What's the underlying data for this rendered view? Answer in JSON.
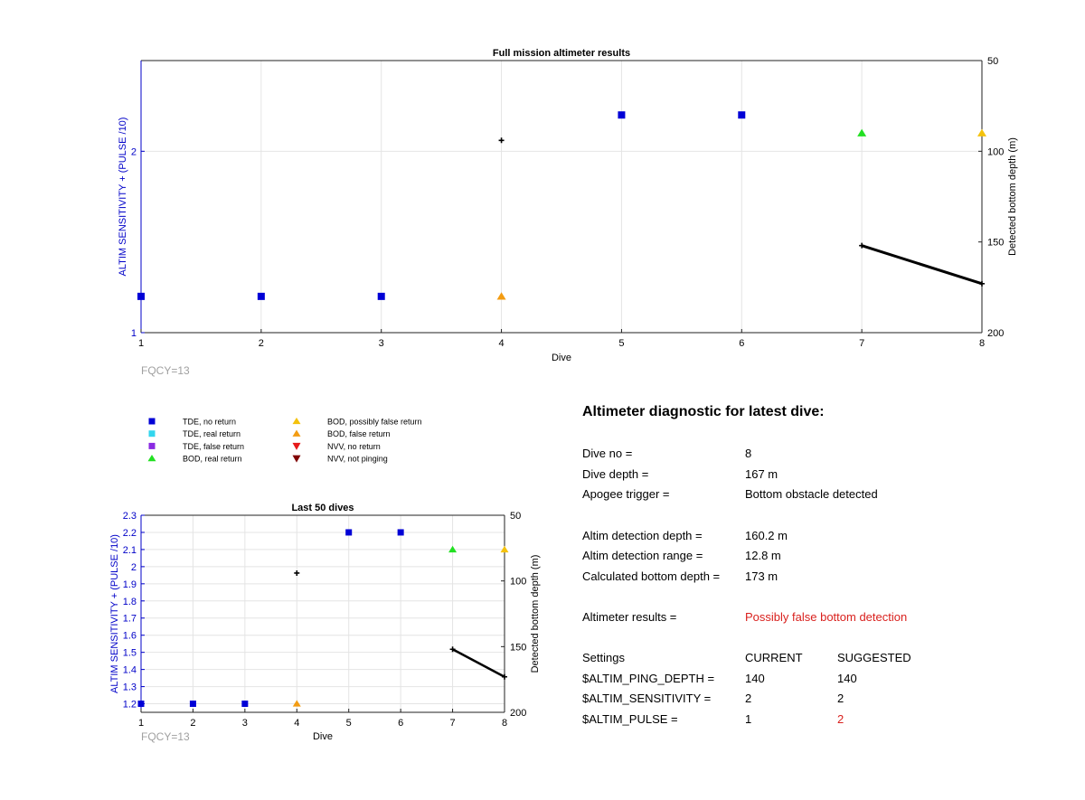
{
  "fqcy_label": "FQCY=13",
  "colors": {
    "tde_no_return": "#0000d6",
    "tde_real_return": "#33d6ee",
    "tde_false_return": "#8a2be2",
    "bod_real_return": "#22e022",
    "bod_possibly_false_return": "#f4c20d",
    "bod_false_return": "#f39c12",
    "nvv_no_return": "#e61a1a",
    "nvv_not_pinging": "#800000",
    "left_axis": "#0000c8",
    "bottom_depth": "#000000",
    "warning_text": "#d9211e",
    "grid": "#e4e4e4"
  },
  "legend": [
    {
      "label": "TDE, no return",
      "marker": "square",
      "color_key": "tde_no_return"
    },
    {
      "label": "TDE, real return",
      "marker": "square",
      "color_key": "tde_real_return"
    },
    {
      "label": "TDE, false return",
      "marker": "square",
      "color_key": "tde_false_return"
    },
    {
      "label": "BOD, real return",
      "marker": "triangle-up",
      "color_key": "bod_real_return"
    },
    {
      "label": "BOD, possibly false return",
      "marker": "triangle-up",
      "color_key": "bod_possibly_false_return"
    },
    {
      "label": "BOD, false return",
      "marker": "triangle-up",
      "color_key": "bod_false_return"
    },
    {
      "label": "NVV, no return",
      "marker": "triangle-down",
      "color_key": "nvv_no_return"
    },
    {
      "label": "NVV, not pinging",
      "marker": "triangle-down",
      "color_key": "nvv_not_pinging"
    }
  ],
  "chart_data": [
    {
      "type": "scatter",
      "title": "Full mission altimeter results",
      "xlabel": "Dive",
      "ylabel": "ALTIM SENSITIVITY + (PULSE /10)",
      "y2label": "Detected bottom depth (m)",
      "xlim": [
        1,
        8
      ],
      "ylim": [
        1,
        2.5
      ],
      "y2lim": [
        200,
        50
      ],
      "y2_reversed": true,
      "xticks": [
        1,
        2,
        3,
        4,
        5,
        6,
        7,
        8
      ],
      "yticks": [
        1,
        2
      ],
      "y2ticks": [
        50,
        100,
        150,
        200
      ],
      "grid": true,
      "series": [
        {
          "name": "TDE, no return",
          "marker": "square",
          "color_key": "tde_no_return",
          "points": [
            [
              1,
              1.2
            ],
            [
              2,
              1.2
            ],
            [
              3,
              1.2
            ],
            [
              5,
              2.2
            ],
            [
              6,
              2.2
            ]
          ]
        },
        {
          "name": "BOD, real return",
          "marker": "triangle-up",
          "color_key": "bod_real_return",
          "points": [
            [
              7,
              2.1
            ]
          ]
        },
        {
          "name": "BOD, possibly false return",
          "marker": "triangle-up",
          "color_key": "bod_possibly_false_return",
          "points": [
            [
              8,
              2.1
            ]
          ]
        },
        {
          "name": "BOD, false return",
          "marker": "triangle-up",
          "color_key": "bod_false_return",
          "points": [
            [
              4,
              1.2
            ]
          ]
        }
      ],
      "bottom_depth": [
        [
          4,
          94
        ],
        [
          7,
          152
        ],
        [
          8,
          173
        ]
      ]
    },
    {
      "type": "scatter",
      "title": "Last 50 dives",
      "xlabel": "Dive",
      "ylabel": "ALTIM SENSITIVITY + (PULSE /10)",
      "y2label": "Detected bottom depth (m)",
      "xlim": [
        1,
        8
      ],
      "ylim": [
        1.15,
        2.3
      ],
      "y2lim": [
        200,
        50
      ],
      "y2_reversed": true,
      "xticks": [
        1,
        2,
        3,
        4,
        5,
        6,
        7,
        8
      ],
      "yticks": [
        1.2,
        1.3,
        1.4,
        1.5,
        1.6,
        1.7,
        1.8,
        1.9,
        2,
        2.1,
        2.2,
        2.3
      ],
      "y2ticks": [
        50,
        100,
        150,
        200
      ],
      "grid": true,
      "series": [
        {
          "name": "TDE, no return",
          "marker": "square",
          "color_key": "tde_no_return",
          "points": [
            [
              1,
              1.2
            ],
            [
              2,
              1.2
            ],
            [
              3,
              1.2
            ],
            [
              5,
              2.2
            ],
            [
              6,
              2.2
            ]
          ]
        },
        {
          "name": "BOD, real return",
          "marker": "triangle-up",
          "color_key": "bod_real_return",
          "points": [
            [
              7,
              2.1
            ]
          ]
        },
        {
          "name": "BOD, possibly false return",
          "marker": "triangle-up",
          "color_key": "bod_possibly_false_return",
          "points": [
            [
              8,
              2.1
            ]
          ]
        },
        {
          "name": "BOD, false return",
          "marker": "triangle-up",
          "color_key": "bod_false_return",
          "points": [
            [
              4,
              1.2
            ]
          ]
        }
      ],
      "bottom_depth": [
        [
          4,
          94
        ],
        [
          7,
          152
        ],
        [
          8,
          173
        ]
      ]
    }
  ],
  "diagnostic": {
    "title": "Altimeter diagnostic for latest dive:",
    "dive_no_label": "Dive no =",
    "dive_no_value": "8",
    "dive_depth_label": "Dive depth =",
    "dive_depth_value": "167 m",
    "apogee_label": "Apogee trigger =",
    "apogee_value": "Bottom obstacle detected",
    "altim_depth_label": "Altim detection depth =",
    "altim_depth_value": "160.2 m",
    "altim_range_label": "Altim detection range =",
    "altim_range_value": "12.8 m",
    "calc_depth_label": "Calculated bottom depth =",
    "calc_depth_value": "173 m",
    "results_label": "Altimeter results =",
    "results_value": "Possibly false bottom detection",
    "settings_header": "Settings",
    "current_header": "CURRENT",
    "suggested_header": "SUGGESTED",
    "settings": [
      {
        "name": "$ALTIM_PING_DEPTH =",
        "current": "140",
        "suggested": "140",
        "changed": false
      },
      {
        "name": "$ALTIM_SENSITIVITY =",
        "current": "2",
        "suggested": "2",
        "changed": false
      },
      {
        "name": "$ALTIM_PULSE =",
        "current": "1",
        "suggested": "2",
        "changed": true
      }
    ]
  }
}
